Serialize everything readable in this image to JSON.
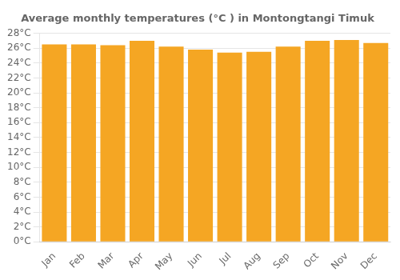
{
  "chart_data": {
    "type": "bar",
    "title": "Average monthly temperatures (°C ) in Montongtangi Timuk",
    "categories": [
      "Jan",
      "Feb",
      "Mar",
      "Apr",
      "May",
      "Jun",
      "Jul",
      "Aug",
      "Sep",
      "Oct",
      "Nov",
      "Dec"
    ],
    "values": [
      26.5,
      26.5,
      26.4,
      27.0,
      26.2,
      25.8,
      25.4,
      25.5,
      26.2,
      27.0,
      27.1,
      26.7
    ],
    "color": "#F5A623",
    "ylim": [
      0,
      28
    ],
    "yticks": [
      {
        "value": 0,
        "label": "0°C"
      },
      {
        "value": 2,
        "label": "2°C"
      },
      {
        "value": 4,
        "label": "4°C"
      },
      {
        "value": 6,
        "label": "6°C"
      },
      {
        "value": 8,
        "label": "8°C"
      },
      {
        "value": 10,
        "label": "10°C"
      },
      {
        "value": 12,
        "label": "12°C"
      },
      {
        "value": 14,
        "label": "14°C"
      },
      {
        "value": 16,
        "label": "16°C"
      },
      {
        "value": 18,
        "label": "18°C"
      },
      {
        "value": 20,
        "label": "20°C"
      },
      {
        "value": 22,
        "label": "22°C"
      },
      {
        "value": 24,
        "label": "24°C"
      },
      {
        "value": 26,
        "label": "26°C"
      },
      {
        "value": 28,
        "label": "28°C"
      }
    ],
    "grid": true
  }
}
